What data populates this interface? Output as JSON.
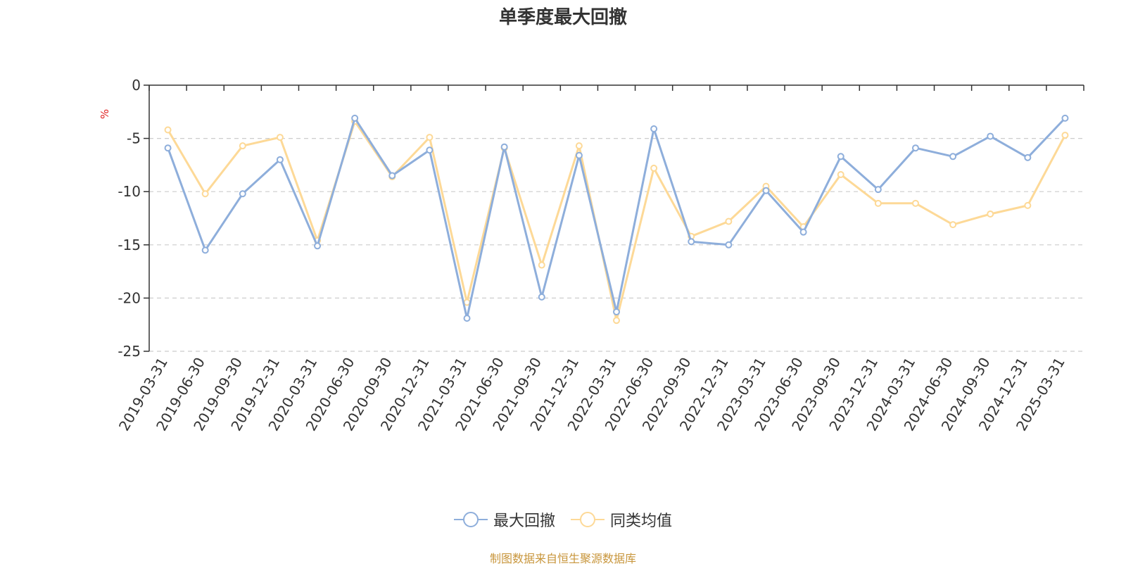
{
  "chart_data": {
    "type": "line",
    "title": "单季度最大回撤",
    "ylabel": "%",
    "ylim": [
      -25,
      0
    ],
    "yticks": [
      0,
      -5,
      -10,
      -15,
      -20,
      -25
    ],
    "grid": true,
    "legend_position": "bottom",
    "categories": [
      "2019-03-31",
      "2019-06-30",
      "2019-09-30",
      "2019-12-31",
      "2020-03-31",
      "2020-06-30",
      "2020-09-30",
      "2020-12-31",
      "2021-03-31",
      "2021-06-30",
      "2021-09-30",
      "2021-12-31",
      "2022-03-31",
      "2022-06-30",
      "2022-09-30",
      "2022-12-31",
      "2023-03-31",
      "2023-06-30",
      "2023-09-30",
      "2023-12-31",
      "2024-03-31",
      "2024-06-30",
      "2024-09-30",
      "2024-12-31",
      "2025-03-31"
    ],
    "series": [
      {
        "name": "最大回撤",
        "color": "#8eaedb",
        "values": [
          -5.9,
          -15.5,
          -10.2,
          -7.0,
          -15.1,
          -3.1,
          -8.5,
          -6.1,
          -21.9,
          -5.8,
          -19.9,
          -6.6,
          -21.3,
          -4.1,
          -14.7,
          -15.0,
          -9.9,
          -13.8,
          -6.7,
          -9.8,
          -5.9,
          -6.7,
          -4.8,
          -6.8,
          -3.1
        ]
      },
      {
        "name": "同类均值",
        "color": "#fdd997",
        "values": [
          -4.2,
          -10.2,
          -5.7,
          -4.9,
          -14.6,
          -3.4,
          -8.6,
          -4.9,
          -20.4,
          -5.9,
          -16.9,
          -5.7,
          -22.1,
          -7.8,
          -14.2,
          -12.8,
          -9.5,
          -13.3,
          -8.4,
          -11.1,
          -11.1,
          -13.1,
          -12.1,
          -11.3,
          -4.7
        ]
      }
    ],
    "source": "制图数据来自恒生聚源数据库"
  }
}
